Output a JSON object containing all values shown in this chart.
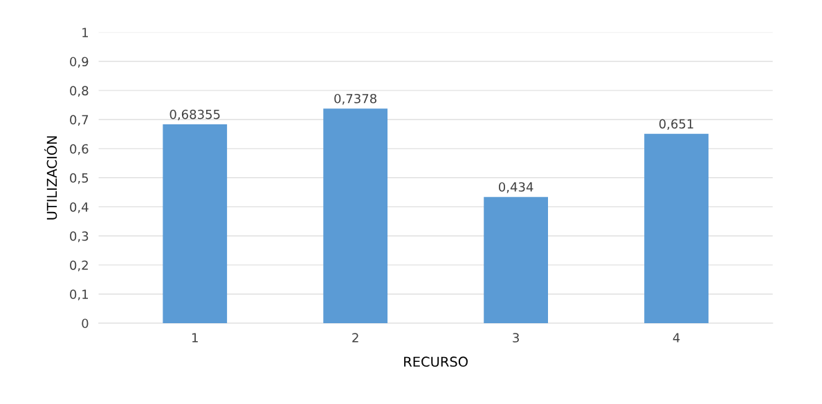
{
  "chart_data": {
    "type": "bar",
    "xlabel": "RECURSO",
    "ylabel": "UTILIZACIÓN",
    "categories": [
      "1",
      "2",
      "3",
      "4"
    ],
    "values": [
      0.68355,
      0.7378,
      0.434,
      0.651
    ],
    "value_labels": [
      "0,68355",
      "0,7378",
      "0,434",
      "0,651"
    ],
    "color": "#5b9bd5",
    "ylim": [
      0,
      1
    ],
    "yticks": [
      {
        "value": 0,
        "label": "0"
      },
      {
        "value": 0.1,
        "label": "0,1"
      },
      {
        "value": 0.2,
        "label": "0,2"
      },
      {
        "value": 0.3,
        "label": "0,3"
      },
      {
        "value": 0.4,
        "label": "0,4"
      },
      {
        "value": 0.5,
        "label": "0,5"
      },
      {
        "value": 0.6,
        "label": "0,6"
      },
      {
        "value": 0.7,
        "label": "0,7"
      },
      {
        "value": 0.8,
        "label": "0,8"
      },
      {
        "value": 0.9,
        "label": "0,9"
      },
      {
        "value": 1,
        "label": "1"
      }
    ],
    "grid": "y"
  }
}
